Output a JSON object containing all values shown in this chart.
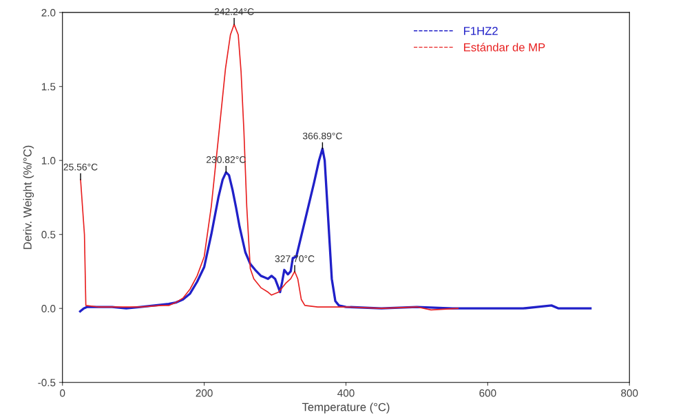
{
  "chart_data": {
    "type": "line",
    "xlabel": "Temperature (°C)",
    "ylabel": "Deriv. Weight (%/°C)",
    "xlim": [
      0,
      800
    ],
    "ylim": [
      -0.5,
      2.0
    ],
    "xticks": [
      0,
      200,
      400,
      600,
      800
    ],
    "yticks": [
      -0.5,
      {
        "value": 0,
        "label": "0.0"
      },
      0.5,
      {
        "value": 1,
        "label": "1.0"
      },
      1.5,
      {
        "value": 2,
        "label": "2.0"
      }
    ],
    "grid": false,
    "legend": "top right",
    "line_style": "solid",
    "series": [
      {
        "name": "F1HZ2",
        "color": "#2020c8",
        "x": [
          25,
          30,
          35,
          50,
          70,
          90,
          110,
          130,
          150,
          160,
          170,
          180,
          190,
          200,
          210,
          220,
          226,
          230.82,
          235,
          240,
          245,
          250,
          258,
          265,
          272,
          280,
          285,
          290,
          295,
          300,
          304,
          307,
          310,
          313,
          318,
          322,
          325,
          330,
          335,
          345,
          355,
          362,
          366.89,
          370,
          375,
          380,
          385,
          390,
          400,
          450,
          500,
          550,
          600,
          650,
          690,
          700,
          745
        ],
        "values": [
          -0.02,
          0.0,
          0.01,
          0.01,
          0.01,
          0.0,
          0.01,
          0.02,
          0.03,
          0.04,
          0.06,
          0.1,
          0.18,
          0.28,
          0.5,
          0.75,
          0.87,
          0.92,
          0.9,
          0.8,
          0.68,
          0.55,
          0.38,
          0.3,
          0.26,
          0.22,
          0.21,
          0.2,
          0.22,
          0.2,
          0.15,
          0.11,
          0.18,
          0.26,
          0.23,
          0.25,
          0.34,
          0.35,
          0.45,
          0.65,
          0.85,
          1.0,
          1.08,
          1.0,
          0.6,
          0.2,
          0.05,
          0.02,
          0.01,
          0.0,
          0.01,
          0.0,
          0.0,
          0.0,
          0.02,
          0.0,
          0.0
        ]
      },
      {
        "name": "Estándar de MP",
        "color": "#e82020",
        "x": [
          25.56,
          31,
          33,
          50,
          80,
          110,
          140,
          150,
          160,
          170,
          180,
          190,
          200,
          210,
          220,
          230,
          237,
          242.24,
          248,
          252,
          256,
          260,
          265,
          270,
          280,
          290,
          295,
          305,
          315,
          322,
          327.7,
          332,
          337,
          342,
          360,
          400,
          450,
          500,
          520,
          558
        ],
        "values": [
          0.87,
          0.5,
          0.02,
          0.01,
          0.01,
          0.01,
          0.02,
          0.02,
          0.04,
          0.07,
          0.13,
          0.22,
          0.35,
          0.69,
          1.15,
          1.62,
          1.85,
          1.92,
          1.85,
          1.6,
          1.2,
          0.69,
          0.27,
          0.2,
          0.14,
          0.11,
          0.09,
          0.11,
          0.17,
          0.2,
          0.25,
          0.2,
          0.06,
          0.02,
          0.01,
          0.01,
          0.0,
          0.01,
          -0.01,
          0.0
        ]
      }
    ],
    "annotations": [
      {
        "text": "25.56°C",
        "x": 25.56,
        "y": 0.87
      },
      {
        "text": "242.24°C",
        "x": 242.24,
        "y": 1.92
      },
      {
        "text": "230.82°C",
        "x": 230.82,
        "y": 0.92
      },
      {
        "text": "366.89°C",
        "x": 366.89,
        "y": 1.08
      },
      {
        "text": "327.70°C",
        "x": 327.7,
        "y": 0.25
      }
    ]
  }
}
